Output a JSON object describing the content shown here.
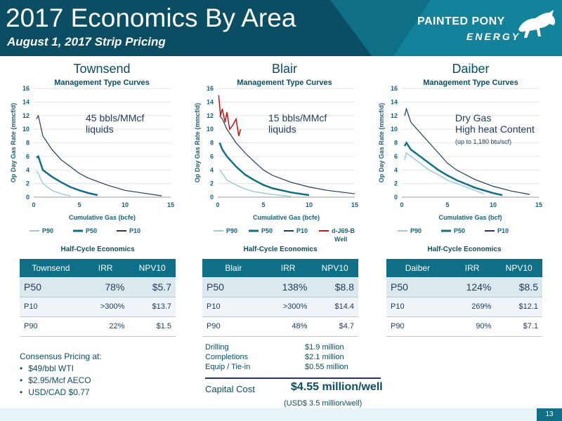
{
  "header": {
    "title": "2017 Economics By Area",
    "subtitle": "August 1, 2017 Strip Pricing",
    "logo_line1": "PAINTED PONY",
    "logo_line2": "ENERGY",
    "colors": {
      "dark": "#0b4d63",
      "mid": "#0e6f87",
      "light": "#1689a2"
    }
  },
  "charts": [
    {
      "name": "Townsend",
      "subtitle": "Management Type Curves",
      "ylabel": "Op Day Gas Rate (mmcf/d)",
      "xlabel": "Cumulative Gas (bcfe)",
      "annotation": [
        "45 bbls/MMcf",
        "liquids"
      ],
      "legend": [
        "P90",
        "P50",
        "P10"
      ]
    },
    {
      "name": "Blair",
      "subtitle": "Management Type Curves",
      "ylabel": "Op Day Gas Rate (mmcf/d)",
      "xlabel": "Cumulative Gas (bcfe)",
      "annotation": [
        "15 bbls/MMcf",
        "liquids"
      ],
      "legend": [
        "P90",
        "P50",
        "P10",
        "d-J69-B Well"
      ]
    },
    {
      "name": "Daiber",
      "subtitle": "Management Type Curves",
      "ylabel": "Op Day Gas Rate (mmcf/d)",
      "xlabel": "Cumulative Gas (bcf)",
      "annotation": [
        "Dry Gas",
        "High heat Content"
      ],
      "annotation_small": "(up to 1,180 btu/scf)",
      "legend": [
        "P90",
        "P50",
        "P10"
      ]
    }
  ],
  "chart_data": [
    {
      "type": "line",
      "title": "Townsend",
      "xlim": [
        0,
        15
      ],
      "ylim": [
        0,
        16
      ],
      "xticks": [
        0,
        5,
        10,
        15
      ],
      "yticks": [
        0,
        2,
        4,
        6,
        8,
        10,
        12,
        14,
        16
      ],
      "series": [
        {
          "name": "P10",
          "color": "#1f3a5a",
          "x": [
            0.3,
            0.5,
            1,
            2,
            3,
            4,
            5,
            6,
            8,
            10,
            12,
            14
          ],
          "y": [
            11.5,
            12,
            9,
            7,
            5.5,
            4.5,
            3.5,
            2.8,
            1.8,
            1.0,
            0.6,
            0.2
          ]
        },
        {
          "name": "P50",
          "color": "#0e6f87",
          "x": [
            0.3,
            0.5,
            1,
            2,
            3,
            4,
            5,
            6,
            7
          ],
          "y": [
            5.8,
            6,
            4,
            3,
            2.2,
            1.5,
            1.0,
            0.6,
            0.3
          ]
        },
        {
          "name": "P90",
          "color": "#9fcbd9",
          "x": [
            0.3,
            0.5,
            1,
            2,
            3,
            4
          ],
          "y": [
            3.8,
            3.5,
            2,
            1.0,
            0.5,
            0.2
          ]
        }
      ]
    },
    {
      "type": "line",
      "title": "Blair",
      "xlim": [
        0,
        15
      ],
      "ylim": [
        0,
        16
      ],
      "xticks": [
        0,
        5,
        10,
        15
      ],
      "yticks": [
        0,
        2,
        4,
        6,
        8,
        10,
        12,
        14,
        16
      ],
      "series": [
        {
          "name": "P10",
          "color": "#1f3a5a",
          "x": [
            0.2,
            0.5,
            1,
            2,
            3,
            4,
            5,
            6,
            8,
            10,
            12,
            15
          ],
          "y": [
            12,
            11.5,
            10,
            8,
            6.5,
            5.2,
            4,
            3.2,
            2.2,
            1.5,
            1.0,
            0.5
          ]
        },
        {
          "name": "P50",
          "color": "#0e6f87",
          "x": [
            0.2,
            0.5,
            1,
            2,
            3,
            4,
            5,
            6,
            8,
            10
          ],
          "y": [
            8,
            7,
            6,
            4.5,
            3.3,
            2.5,
            1.8,
            1.3,
            0.7,
            0.3
          ]
        },
        {
          "name": "P90",
          "color": "#9fcbd9",
          "x": [
            0.2,
            0.5,
            1,
            2,
            3,
            4,
            6,
            8
          ],
          "y": [
            4,
            3.5,
            2.5,
            1.8,
            1.2,
            0.8,
            0.4,
            0.1
          ]
        },
        {
          "name": "d-J69-B Well",
          "color": "#cc1111",
          "x": [
            0.1,
            0.3,
            0.5,
            0.8,
            1.0,
            1.3,
            1.6,
            2.0,
            2.3,
            2.5
          ],
          "y": [
            15,
            12,
            13,
            11,
            12.5,
            10,
            10.5,
            11.5,
            9,
            10
          ]
        }
      ]
    },
    {
      "type": "line",
      "title": "Daiber",
      "xlim": [
        0,
        15
      ],
      "ylim": [
        0,
        16
      ],
      "xticks": [
        0,
        5,
        10,
        15
      ],
      "yticks": [
        0,
        2,
        4,
        6,
        8,
        10,
        12,
        14,
        16
      ],
      "series": [
        {
          "name": "P10",
          "color": "#1f3a5a",
          "x": [
            0.3,
            0.5,
            1,
            2,
            3,
            4,
            5,
            6,
            8,
            10,
            12,
            14
          ],
          "y": [
            12,
            13,
            11,
            9.5,
            8,
            6.5,
            5,
            4,
            2.6,
            1.6,
            0.9,
            0.4
          ]
        },
        {
          "name": "P50",
          "color": "#0e6f87",
          "x": [
            0.3,
            0.5,
            1,
            2,
            3,
            4,
            5,
            6,
            8,
            10,
            11
          ],
          "y": [
            7.5,
            8,
            7,
            6,
            5,
            4,
            3.2,
            2.5,
            1.4,
            0.6,
            0.3
          ]
        },
        {
          "name": "P90",
          "color": "#9fcbd9",
          "x": [
            0.3,
            0.5,
            1,
            2,
            3,
            4,
            5,
            6,
            8,
            9
          ],
          "y": [
            5.5,
            6.5,
            6,
            5,
            4,
            3.3,
            2.5,
            2,
            1,
            0.5
          ]
        }
      ]
    }
  ],
  "half_cycle_label": "Half-Cycle Economics",
  "tables": [
    {
      "area": "Townsend",
      "headers": [
        "Townsend",
        "IRR",
        "NPV10"
      ],
      "rows": [
        [
          "P50",
          "78%",
          "$5.7"
        ],
        [
          "P10",
          ">300%",
          "$13.7"
        ],
        [
          "P90",
          "22%",
          "$1.5"
        ]
      ]
    },
    {
      "area": "Blair",
      "headers": [
        "Blair",
        "IRR",
        "NPV10"
      ],
      "rows": [
        [
          "P50",
          "138%",
          "$8.8"
        ],
        [
          "P10",
          ">300%",
          "$14.4"
        ],
        [
          "P90",
          "48%",
          "$4.7"
        ]
      ]
    },
    {
      "area": "Daiber",
      "headers": [
        "Daiber",
        "IRR",
        "NPV10"
      ],
      "rows": [
        [
          "P50",
          "124%",
          "$8.5"
        ],
        [
          "P10",
          "269%",
          "$12.1"
        ],
        [
          "P90",
          "90%",
          "$7.1"
        ]
      ]
    }
  ],
  "consensus": {
    "title": "Consensus Pricing at:",
    "items": [
      "$49/bbl WTI",
      "$2.95/Mcf AECO",
      "USD/CAD $0.77"
    ]
  },
  "capex": {
    "rows": [
      {
        "label": "Drilling",
        "value": "$1.9 million"
      },
      {
        "label": "Completions",
        "value": "$2.1 million"
      },
      {
        "label": "Equip / Tie-in",
        "value": "$0.55 million"
      }
    ],
    "total_label": "Capital Cost",
    "total_value": "$4.55 million/well",
    "total_usd": "(USD$ 3.5 million/well)"
  },
  "page_number": "13"
}
